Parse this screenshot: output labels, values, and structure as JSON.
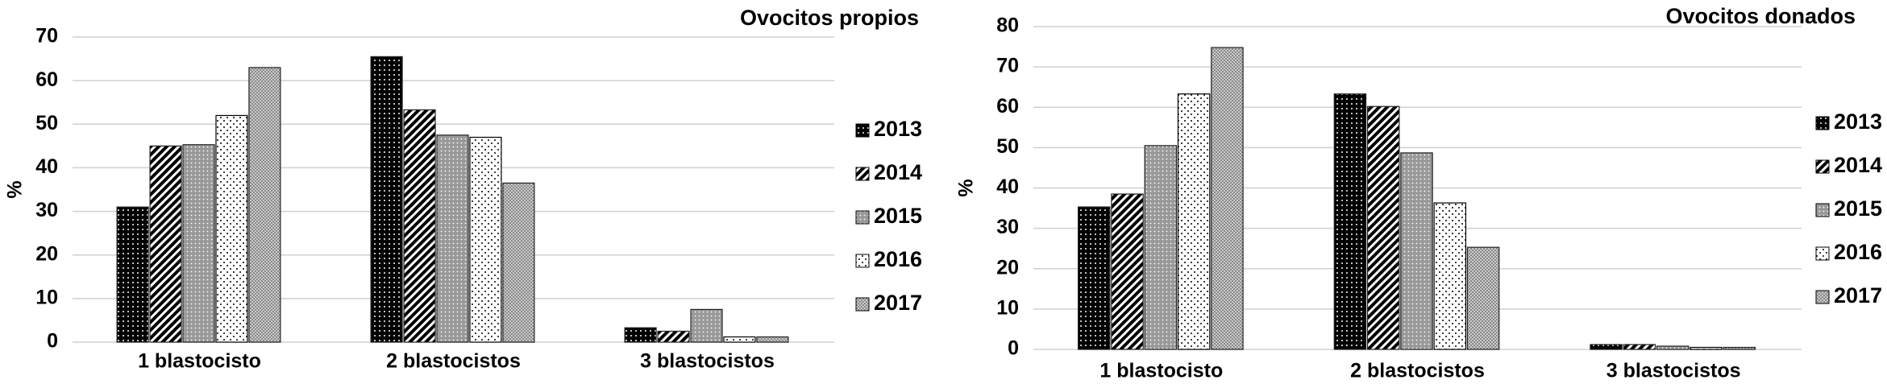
{
  "chart_data": [
    {
      "type": "bar",
      "title": "Ovocitos propios",
      "y_label": "%",
      "categories": [
        "1 blastocisto",
        "2 blastocistos",
        "3 blastocistos"
      ],
      "series": [
        {
          "name": "2013",
          "color": "#000000",
          "values": [
            31,
            65.5,
            3.3
          ]
        },
        {
          "name": "2014",
          "color": "#333333",
          "values": [
            45,
            53.3,
            2.5
          ]
        },
        {
          "name": "2015",
          "color": "#999999",
          "values": [
            45.3,
            47.5,
            7.5
          ]
        },
        {
          "name": "2016",
          "color": "#ffffff",
          "values": [
            52,
            47,
            1.2
          ]
        },
        {
          "name": "2017",
          "color": "#cccccc",
          "values": [
            63,
            36.5,
            1.2
          ]
        }
      ],
      "ylim": [
        0,
        70
      ],
      "yticks": [
        0,
        10,
        20,
        30,
        40,
        50,
        60,
        70
      ],
      "grid": true,
      "legend": "right"
    },
    {
      "type": "bar",
      "title": "Ovocitos donados",
      "y_label": "%",
      "categories": [
        "1 blastocisto",
        "2 blastocistos",
        "3 blastocistos"
      ],
      "series": [
        {
          "name": "2013",
          "color": "#000000",
          "values": [
            35.3,
            63.3,
            1.2
          ]
        },
        {
          "name": "2014",
          "color": "#333333",
          "values": [
            38.5,
            60.2,
            1.2
          ]
        },
        {
          "name": "2015",
          "color": "#999999",
          "values": [
            50.5,
            48.7,
            0.8
          ]
        },
        {
          "name": "2016",
          "color": "#ffffff",
          "values": [
            63.3,
            36.3,
            0.5
          ]
        },
        {
          "name": "2017",
          "color": "#cccccc",
          "values": [
            74.8,
            25.3,
            0.5
          ]
        }
      ],
      "ylim": [
        0,
        80
      ],
      "yticks": [
        0,
        10,
        20,
        30,
        40,
        50,
        60,
        70,
        80
      ],
      "grid": true,
      "legend": "right"
    }
  ]
}
